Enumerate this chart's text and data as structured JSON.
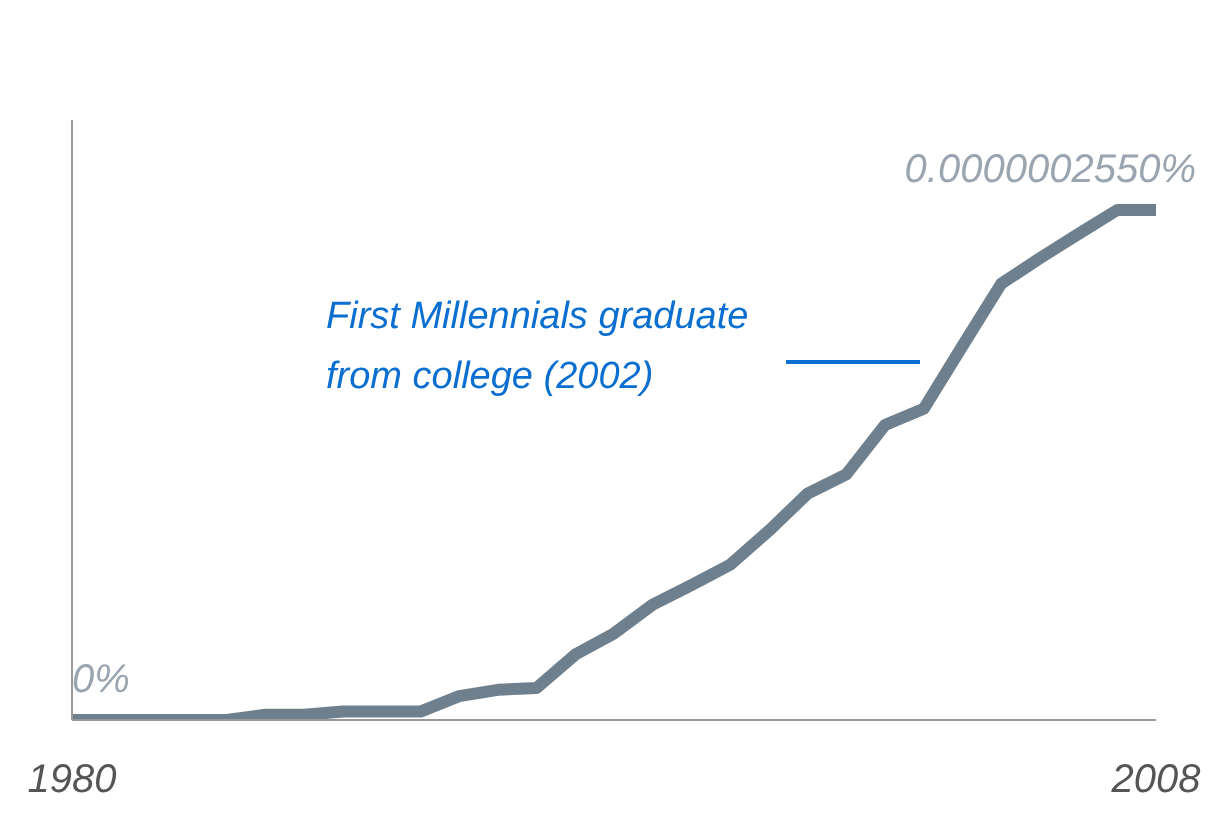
{
  "chart_data": {
    "type": "line",
    "x": [
      1980,
      1981,
      1982,
      1983,
      1984,
      1985,
      1986,
      1987,
      1988,
      1989,
      1990,
      1991,
      1992,
      1993,
      1994,
      1995,
      1996,
      1997,
      1998,
      1999,
      2000,
      2001,
      2002,
      2003,
      2004,
      2005,
      2006,
      2007,
      2008
    ],
    "series": [
      {
        "color": "#6e7f8d",
        "values": [
          0,
          0,
          0,
          0,
          0,
          2.6e-09,
          2.6e-09,
          4.2e-09,
          4.2e-09,
          4.2e-09,
          1.19e-08,
          1.51e-08,
          1.6e-08,
          3.27e-08,
          4.33e-08,
          5.77e-08,
          6.74e-08,
          7.76e-08,
          9.46e-08,
          1.132e-07,
          1.228e-07,
          1.475e-07,
          1.556e-07,
          1.87e-07,
          2.181e-07,
          2.309e-07,
          2.431e-07,
          2.55e-07,
          2.55e-07
        ],
        "value_labels": [
          "0%",
          null,
          null,
          null,
          null,
          null,
          null,
          null,
          null,
          null,
          null,
          null,
          null,
          null,
          null,
          null,
          null,
          null,
          null,
          null,
          null,
          null,
          null,
          null,
          null,
          null,
          null,
          null,
          "0.0000002550%"
        ]
      }
    ],
    "xlim": [
      1980,
      2008
    ],
    "xticks": [
      1980,
      2008
    ],
    "ylim": [
      0,
      3e-07
    ],
    "tick_labels": "x",
    "grid": false,
    "legend": false,
    "marker": "none",
    "line_style": "solid",
    "annotations": [
      "First Millennials graduate from college (2002)"
    ]
  }
}
